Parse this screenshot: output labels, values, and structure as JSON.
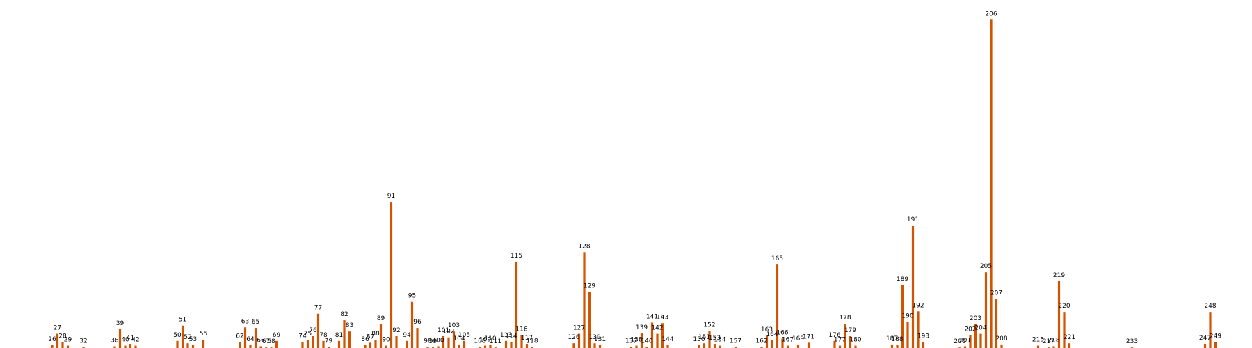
{
  "chart_data": {
    "type": "bar",
    "title": "",
    "xlabel": "",
    "ylabel": "",
    "grid": false,
    "legend": "none",
    "bar_color": "#d35400",
    "ylim": [
      0,
      560
    ],
    "xlim": [
      16,
      256
    ],
    "points": [
      {
        "x": 26,
        "value": 5
      },
      {
        "x": 27,
        "value": 24
      },
      {
        "x": 28,
        "value": 10
      },
      {
        "x": 29,
        "value": 4
      },
      {
        "x": 32,
        "value": 2
      },
      {
        "x": 38,
        "value": 3
      },
      {
        "x": 39,
        "value": 32
      },
      {
        "x": 40,
        "value": 4
      },
      {
        "x": 41,
        "value": 7
      },
      {
        "x": 42,
        "value": 4
      },
      {
        "x": 50,
        "value": 12
      },
      {
        "x": 51,
        "value": 38
      },
      {
        "x": 52,
        "value": 8
      },
      {
        "x": 53,
        "value": 5
      },
      {
        "x": 55,
        "value": 14
      },
      {
        "x": 62,
        "value": 10
      },
      {
        "x": 63,
        "value": 35
      },
      {
        "x": 64,
        "value": 5
      },
      {
        "x": 65,
        "value": 34
      },
      {
        "x": 66,
        "value": 3
      },
      {
        "x": 67,
        "value": 1
      },
      {
        "x": 68,
        "value": 1
      },
      {
        "x": 69,
        "value": 12
      },
      {
        "x": 74,
        "value": 10
      },
      {
        "x": 75,
        "value": 14
      },
      {
        "x": 76,
        "value": 20
      },
      {
        "x": 77,
        "value": 58
      },
      {
        "x": 78,
        "value": 12
      },
      {
        "x": 79,
        "value": 2
      },
      {
        "x": 81,
        "value": 12
      },
      {
        "x": 82,
        "value": 47
      },
      {
        "x": 83,
        "value": 28
      },
      {
        "x": 86,
        "value": 5
      },
      {
        "x": 87,
        "value": 9
      },
      {
        "x": 88,
        "value": 14
      },
      {
        "x": 89,
        "value": 40
      },
      {
        "x": 90,
        "value": 4
      },
      {
        "x": 91,
        "value": 247
      },
      {
        "x": 92,
        "value": 20
      },
      {
        "x": 94,
        "value": 12
      },
      {
        "x": 95,
        "value": 78
      },
      {
        "x": 96,
        "value": 34
      },
      {
        "x": 98,
        "value": 2
      },
      {
        "x": 99,
        "value": 1
      },
      {
        "x": 100,
        "value": 3
      },
      {
        "x": 101,
        "value": 20
      },
      {
        "x": 102,
        "value": 18
      },
      {
        "x": 103,
        "value": 28
      },
      {
        "x": 104,
        "value": 6
      },
      {
        "x": 105,
        "value": 12
      },
      {
        "x": 108,
        "value": 2
      },
      {
        "x": 109,
        "value": 4
      },
      {
        "x": 110,
        "value": 6
      },
      {
        "x": 111,
        "value": 1
      },
      {
        "x": 113,
        "value": 12
      },
      {
        "x": 114,
        "value": 10
      },
      {
        "x": 115,
        "value": 146
      },
      {
        "x": 116,
        "value": 22
      },
      {
        "x": 117,
        "value": 7
      },
      {
        "x": 118,
        "value": 2
      },
      {
        "x": 126,
        "value": 8
      },
      {
        "x": 127,
        "value": 24
      },
      {
        "x": 128,
        "value": 162
      },
      {
        "x": 129,
        "value": 95
      },
      {
        "x": 130,
        "value": 8
      },
      {
        "x": 131,
        "value": 5
      },
      {
        "x": 137,
        "value": 2
      },
      {
        "x": 138,
        "value": 4
      },
      {
        "x": 139,
        "value": 25
      },
      {
        "x": 140,
        "value": 2
      },
      {
        "x": 141,
        "value": 43
      },
      {
        "x": 142,
        "value": 24
      },
      {
        "x": 143,
        "value": 42
      },
      {
        "x": 144,
        "value": 5
      },
      {
        "x": 150,
        "value": 5
      },
      {
        "x": 151,
        "value": 8
      },
      {
        "x": 152,
        "value": 29
      },
      {
        "x": 153,
        "value": 7
      },
      {
        "x": 154,
        "value": 4
      },
      {
        "x": 157,
        "value": 2
      },
      {
        "x": 162,
        "value": 2
      },
      {
        "x": 163,
        "value": 21
      },
      {
        "x": 164,
        "value": 13
      },
      {
        "x": 165,
        "value": 141
      },
      {
        "x": 166,
        "value": 16
      },
      {
        "x": 167,
        "value": 4
      },
      {
        "x": 169,
        "value": 6
      },
      {
        "x": 171,
        "value": 9
      },
      {
        "x": 176,
        "value": 12
      },
      {
        "x": 177,
        "value": 4
      },
      {
        "x": 178,
        "value": 41
      },
      {
        "x": 179,
        "value": 20
      },
      {
        "x": 180,
        "value": 4
      },
      {
        "x": 187,
        "value": 6
      },
      {
        "x": 188,
        "value": 5
      },
      {
        "x": 189,
        "value": 106
      },
      {
        "x": 190,
        "value": 44
      },
      {
        "x": 191,
        "value": 207
      },
      {
        "x": 192,
        "value": 62
      },
      {
        "x": 193,
        "value": 10
      },
      {
        "x": 200,
        "value": 1
      },
      {
        "x": 201,
        "value": 3
      },
      {
        "x": 202,
        "value": 22
      },
      {
        "x": 203,
        "value": 40
      },
      {
        "x": 204,
        "value": 24
      },
      {
        "x": 205,
        "value": 128
      },
      {
        "x": 206,
        "value": 555
      },
      {
        "x": 207,
        "value": 83
      },
      {
        "x": 208,
        "value": 6
      },
      {
        "x": 215,
        "value": 4
      },
      {
        "x": 217,
        "value": 1
      },
      {
        "x": 218,
        "value": 3
      },
      {
        "x": 219,
        "value": 113
      },
      {
        "x": 220,
        "value": 61
      },
      {
        "x": 221,
        "value": 8
      },
      {
        "x": 233,
        "value": 1
      },
      {
        "x": 247,
        "value": 7
      },
      {
        "x": 248,
        "value": 61
      },
      {
        "x": 249,
        "value": 10
      }
    ]
  }
}
